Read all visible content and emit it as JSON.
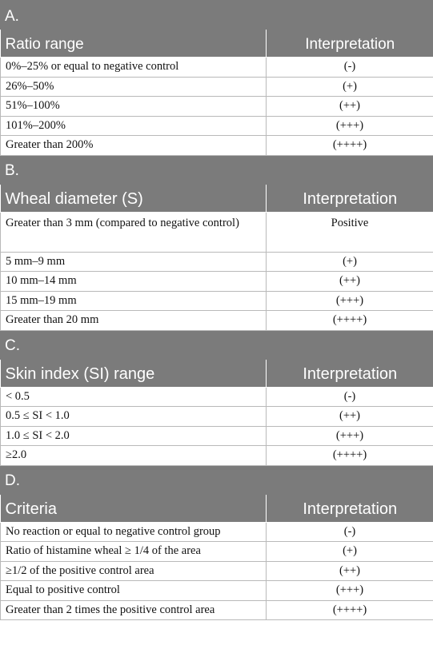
{
  "sections": [
    {
      "label": "A.",
      "header": [
        "Ratio range",
        "Interpretation"
      ],
      "rows": [
        [
          "0%–25% or equal to negative control",
          "(-)"
        ],
        [
          "26%–50%",
          "(+)"
        ],
        [
          "51%–100%",
          "(++)"
        ],
        [
          "101%–200%",
          "(+++)"
        ],
        [
          "Greater than 200%",
          "(++++)"
        ]
      ]
    },
    {
      "label": "B.",
      "header": [
        "Wheal diameter (S)",
        "Interpretation"
      ],
      "rows": [
        [
          "Greater than 3 mm (compared to negative control)",
          "Positive"
        ],
        [
          "5 mm–9 mm",
          "(+)"
        ],
        [
          "10 mm–14 mm",
          "(++)"
        ],
        [
          "15 mm–19 mm",
          "(+++)"
        ],
        [
          "Greater than 20 mm",
          "(++++)"
        ]
      ]
    },
    {
      "label": "C.",
      "header": [
        "Skin index (SI) range",
        "Interpretation"
      ],
      "rows": [
        [
          "< 0.5",
          "(-)"
        ],
        [
          "0.5 ≤ SI < 1.0",
          "(++)"
        ],
        [
          "1.0 ≤ SI < 2.0",
          "(+++)"
        ],
        [
          "≥2.0",
          "(++++)"
        ]
      ]
    },
    {
      "label": "D.",
      "header": [
        "Criteria",
        "Interpretation"
      ],
      "rows": [
        [
          "No reaction or equal to negative control group",
          "(-)"
        ],
        [
          "Ratio of histamine wheal ≥ 1/4 of the area",
          "(+)"
        ],
        [
          "≥1/2 of the positive control area",
          "(++)"
        ],
        [
          "Equal to positive control",
          "(+++)"
        ],
        [
          "Greater than 2 times the positive control area",
          "(++++)"
        ]
      ]
    }
  ]
}
